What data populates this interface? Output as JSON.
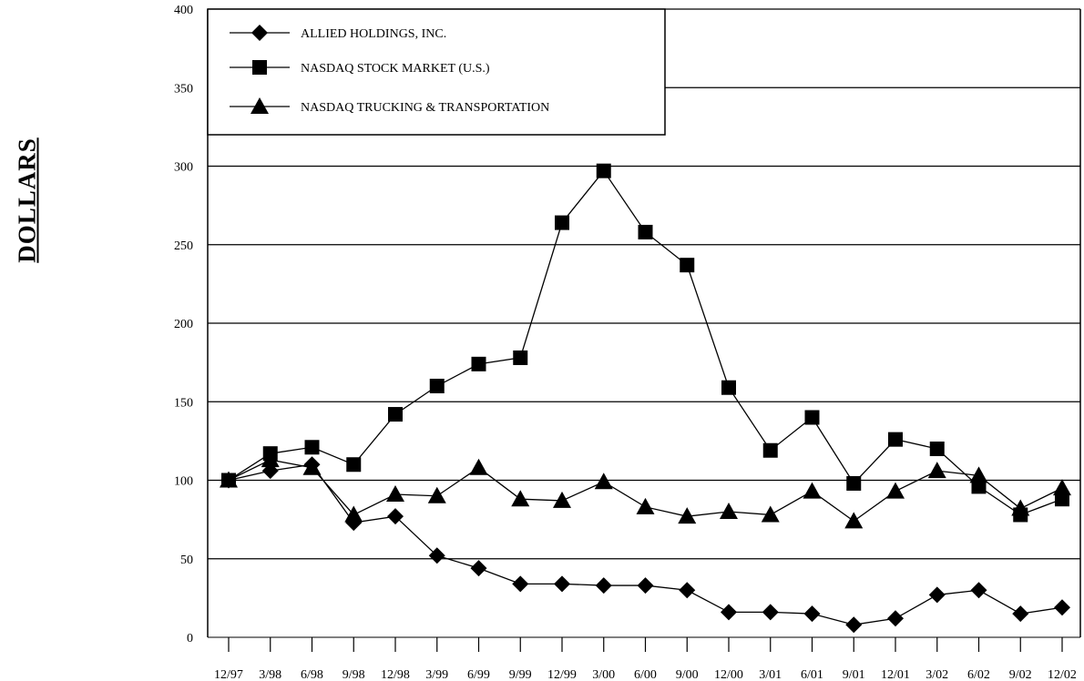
{
  "chart_data": {
    "type": "line",
    "title": "",
    "xlabel": "",
    "ylabel": "DOLLARS",
    "ylim": [
      0,
      400
    ],
    "yticks": [
      0,
      50,
      100,
      150,
      200,
      250,
      300,
      350,
      400
    ],
    "grid": "horizontal",
    "legend_position": "top-left",
    "categories": [
      "12/97",
      "3/98",
      "6/98",
      "9/98",
      "12/98",
      "3/99",
      "6/99",
      "9/99",
      "12/99",
      "3/00",
      "6/00",
      "9/00",
      "12/00",
      "3/01",
      "6/01",
      "9/01",
      "12/01",
      "3/02",
      "6/02",
      "9/02",
      "12/02"
    ],
    "series": [
      {
        "name": "ALLIED HOLDINGS, INC.",
        "marker": "diamond",
        "values": [
          100,
          106,
          110,
          73,
          77,
          52,
          44,
          34,
          34,
          33,
          33,
          30,
          16,
          16,
          15,
          8,
          12,
          27,
          30,
          15,
          19
        ]
      },
      {
        "name": "NASDAQ STOCK MARKET (U.S.)",
        "marker": "square",
        "values": [
          100,
          117,
          121,
          110,
          142,
          160,
          174,
          178,
          264,
          297,
          258,
          237,
          159,
          119,
          140,
          98,
          126,
          120,
          96,
          78,
          88
        ]
      },
      {
        "name": "NASDAQ TRUCKING & TRANSPORTATION",
        "marker": "triangle",
        "values": [
          100,
          113,
          108,
          78,
          91,
          90,
          108,
          88,
          87,
          99,
          83,
          77,
          80,
          78,
          93,
          74,
          93,
          106,
          103,
          82,
          95
        ]
      }
    ]
  }
}
